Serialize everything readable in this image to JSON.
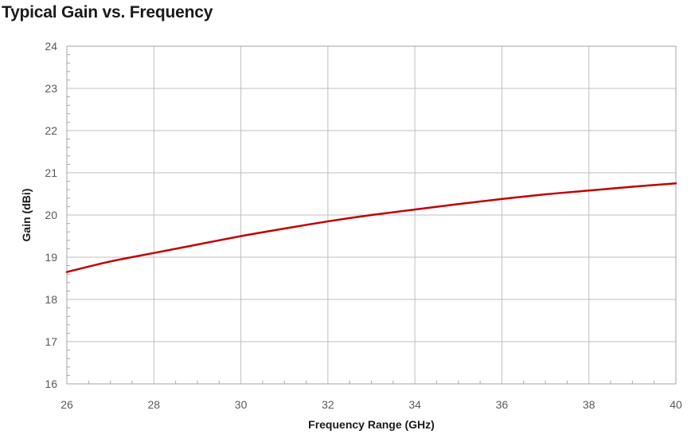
{
  "chart_data": {
    "type": "line",
    "title": "Typical Gain vs. Frequency",
    "xlabel": "Frequency Range (GHz)",
    "ylabel": "Gain (dBi)",
    "xlim": [
      26,
      40
    ],
    "ylim": [
      16,
      24
    ],
    "xticks": [
      26,
      28,
      30,
      32,
      34,
      36,
      38,
      40
    ],
    "yticks": [
      16,
      17,
      18,
      19,
      20,
      21,
      22,
      23,
      24
    ],
    "grid": true,
    "legend": "none",
    "series": [
      {
        "color": "#c00000",
        "x": [
          26,
          27,
          28,
          29,
          30,
          31,
          32,
          33,
          34,
          35,
          36,
          37,
          38,
          39,
          40
        ],
        "y": [
          18.65,
          18.9,
          19.1,
          19.3,
          19.5,
          19.68,
          19.85,
          20.0,
          20.13,
          20.26,
          20.38,
          20.49,
          20.58,
          20.67,
          20.75
        ]
      }
    ]
  }
}
